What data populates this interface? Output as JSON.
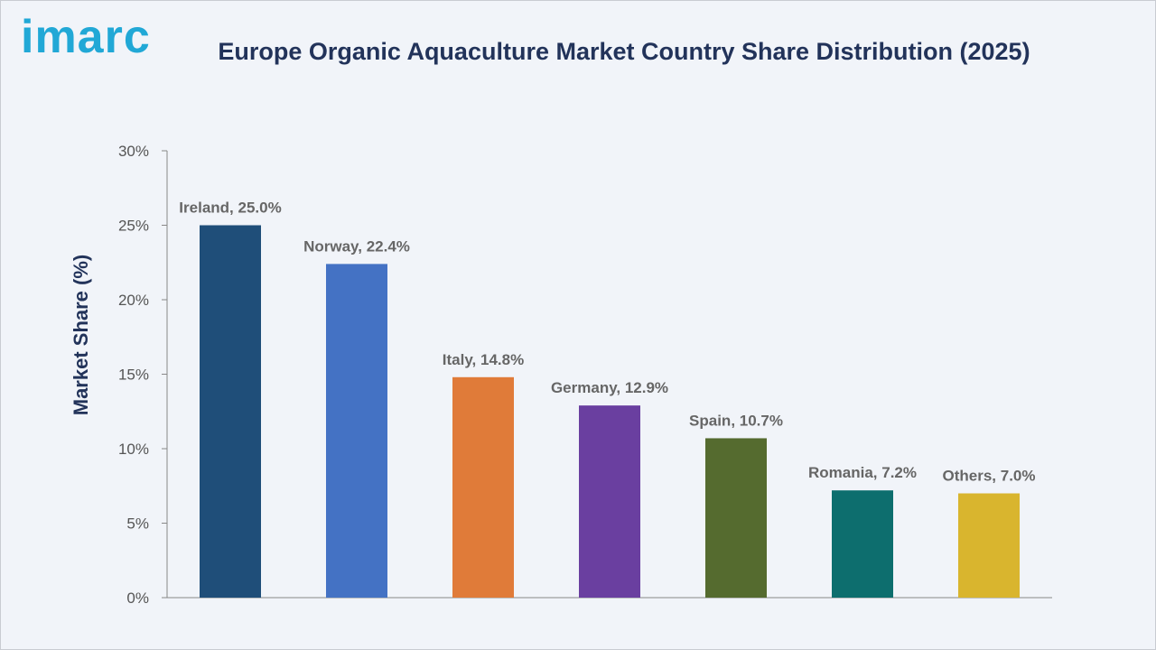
{
  "logo": {
    "text": "imarc",
    "color": "#21a8d6"
  },
  "chart_data": {
    "type": "bar",
    "title": "Europe Organic Aquaculture Market Country Share Distribution (2025)",
    "xlabel": "",
    "ylabel": "Market Share (%)",
    "ylim": [
      0,
      30
    ],
    "yticks": [
      0,
      5,
      10,
      15,
      20,
      25,
      30
    ],
    "ytick_labels": [
      "0%",
      "5%",
      "10%",
      "15%",
      "20%",
      "25%",
      "30%"
    ],
    "grid": false,
    "legend": "none",
    "categories": [
      "Ireland",
      "Norway",
      "Italy",
      "Germany",
      "Spain",
      "Romania",
      "Others"
    ],
    "values": [
      25.0,
      22.4,
      14.8,
      12.9,
      10.7,
      7.2,
      7.0
    ],
    "data_labels": [
      "Ireland, 25.0%",
      "Norway, 22.4%",
      "Italy, 14.8%",
      "Germany, 12.9%",
      "Spain, 10.7%",
      "Romania, 7.2%",
      "Others, 7.0%"
    ],
    "colors": [
      "#1f4e79",
      "#4472c4",
      "#e07b39",
      "#6a3fa0",
      "#556b2f",
      "#0d6e6e",
      "#d9b52e"
    ]
  }
}
